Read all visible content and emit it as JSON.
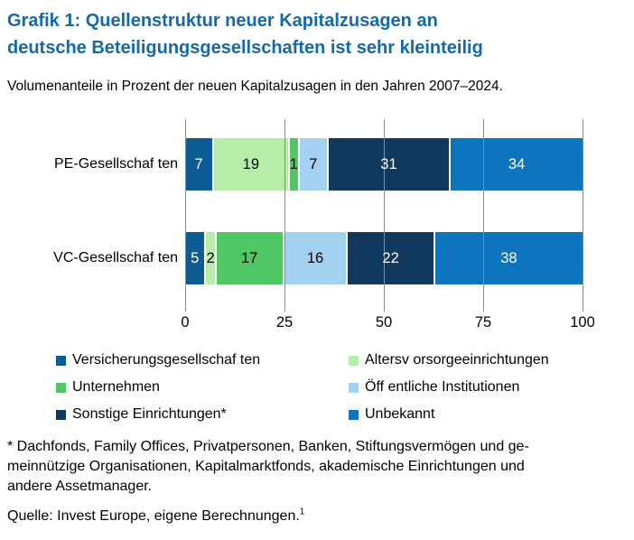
{
  "title": {
    "line1": "Grafik 1: Quellenstruktur neuer Kapitalzusagen an",
    "line2": "deutsche Beteiligungsgesellschaften ist sehr kleinteilig"
  },
  "subtitle": "Volumenanteile in Prozent der neuen Kapitalzusagen in den Jahren 2007–2024.",
  "chart_data": {
    "type": "bar",
    "orientation": "horizontal-stacked",
    "categories": [
      "PE-Gesellschaften",
      "VC-Gesellschaften"
    ],
    "category_labels": [
      "PE-Gesellschaf ten",
      "VC-Gesellschaf ten"
    ],
    "series": [
      {
        "name": "Versicherungsgesellschaften",
        "color": "#0E5C94",
        "label_color": "#FFFFFF",
        "values": [
          7,
          5
        ]
      },
      {
        "name": "Altersvorsorgeeinrichtungen",
        "color": "#B5EDA9",
        "label_color": "#000000",
        "values": [
          19,
          2
        ]
      },
      {
        "name": "Unternehmen",
        "color": "#4FC765",
        "label_color": "#000000",
        "values": [
          1,
          17
        ]
      },
      {
        "name": "Öffentliche Institutionen",
        "color": "#A3D2F0",
        "label_color": "#000000",
        "values": [
          7,
          16
        ]
      },
      {
        "name": "Sonstige Einrichtungen*",
        "color": "#11395D",
        "label_color": "#FFFFFF",
        "values": [
          31,
          22
        ]
      },
      {
        "name": "Unbekannt",
        "color": "#0D74BE",
        "label_color": "#FFFFFF",
        "values": [
          34,
          38
        ]
      }
    ],
    "x_ticks": [
      0,
      25,
      50,
      75,
      100
    ],
    "xlim": [
      0,
      100
    ],
    "grid": true,
    "legend_position": "below"
  },
  "legend": {
    "items": [
      {
        "label": "Versicherungsgesellschaf ten",
        "color": "#0E5C94"
      },
      {
        "label": "Altersv orsorgeeinrichtungen",
        "color": "#B5EDA9"
      },
      {
        "label": "Unternehmen",
        "color": "#4FC765"
      },
      {
        "label": "Öff entliche Institutionen",
        "color": "#A3D2F0"
      },
      {
        "label": "Sonstige Einrichtungen*",
        "color": "#11395D"
      },
      {
        "label": "Unbekannt",
        "color": "#0D74BE"
      }
    ]
  },
  "footnote": {
    "lines": [
      "* Dachfonds, Family Offices, Privatpersonen, Banken, Stiftungsvermögen und ge-",
      "meinnützige Organisationen, Kapitalmarktfonds, akademische Einrichtungen und",
      "andere Assetmanager."
    ]
  },
  "source": {
    "text": "Quelle: Invest Europe, eigene Berechnungen.",
    "superscript": "1"
  },
  "colors": {
    "title": "#1569A9",
    "gridline": "#8C8C8C",
    "text": "#000000"
  }
}
